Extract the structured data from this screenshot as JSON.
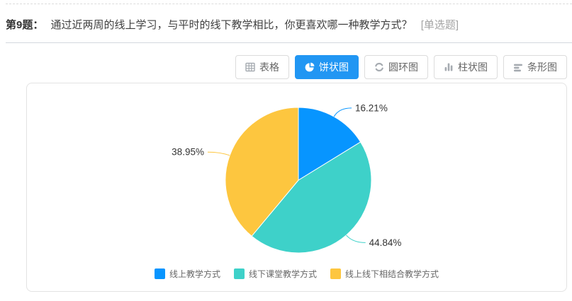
{
  "question": {
    "number_label": "第9题：",
    "text": "通过近两周的线上学习，与平时的线下教学相比，你更喜欢哪一种教学方式？",
    "type_tag": "[单选题]"
  },
  "toolbar": {
    "active_bg": "#2196f3",
    "buttons": [
      {
        "label": "表格",
        "icon": "table-icon",
        "active": false
      },
      {
        "label": "饼状图",
        "icon": "pie-chart-icon",
        "active": true
      },
      {
        "label": "圆环图",
        "icon": "donut-chart-icon",
        "active": false
      },
      {
        "label": "柱状图",
        "icon": "column-chart-icon",
        "active": false
      },
      {
        "label": "条形图",
        "icon": "bar-chart-icon",
        "active": false
      }
    ]
  },
  "chart_data": {
    "type": "pie",
    "direction": "clockwise",
    "start_angle_deg": 0,
    "legend_position": "bottom",
    "label_color": "#333333",
    "series": [
      {
        "name": "线上教学方式",
        "value": 16.21,
        "label": "16.21%",
        "color": "#0795ff"
      },
      {
        "name": "线下课堂教学方式",
        "value": 44.84,
        "label": "44.84%",
        "color": "#3ed1c9"
      },
      {
        "name": "线上线下相结合教学方式",
        "value": 38.95,
        "label": "38.95%",
        "color": "#fdc63f"
      }
    ]
  }
}
